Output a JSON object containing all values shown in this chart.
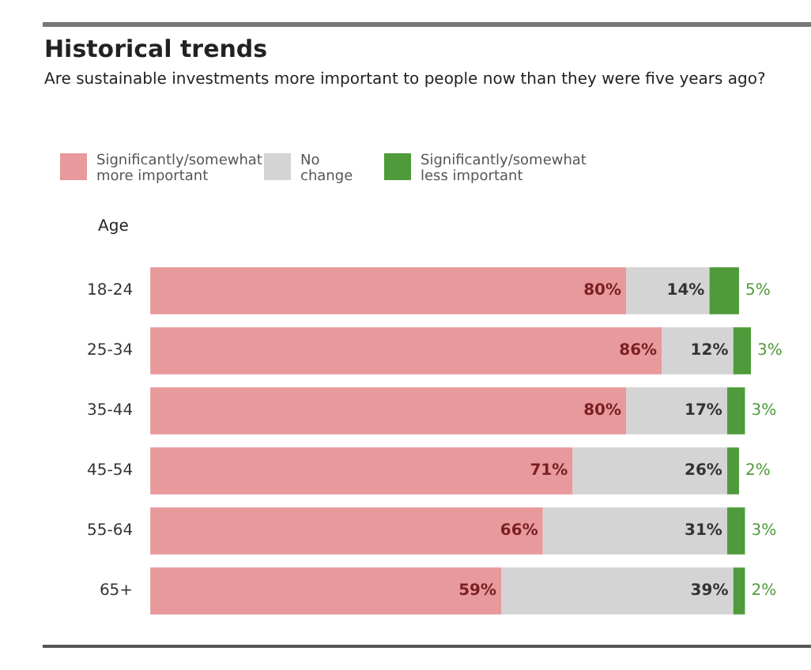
{
  "chart_data": {
    "type": "bar",
    "orientation": "horizontal",
    "stacked": true,
    "title": "Historical trends",
    "subtitle": "Are sustainable investments more important to people now than they were five years ago?",
    "ylabel": "Age",
    "categories": [
      "18-24",
      "25-34",
      "35-44",
      "45-54",
      "55-64",
      "65+"
    ],
    "series": [
      {
        "name": "Significantly/somewhat more important",
        "color": "#e8999c",
        "values": [
          80,
          86,
          80,
          71,
          66,
          59
        ],
        "value_labels": [
          "80%",
          "86%",
          "80%",
          "71%",
          "66%",
          "59%"
        ]
      },
      {
        "name": "No change",
        "color": "#d4d4d4",
        "values": [
          14,
          12,
          17,
          26,
          31,
          39
        ],
        "value_labels": [
          "14%",
          "12%",
          "17%",
          "26%",
          "31%",
          "39%"
        ]
      },
      {
        "name": "Significantly/somewhat less important",
        "color": "#4f9a3b",
        "values": [
          5,
          3,
          3,
          2,
          3,
          2
        ],
        "value_labels": [
          "5%",
          "3%",
          "3%",
          "2%",
          "3%",
          "2%"
        ]
      }
    ],
    "xlim": [
      0,
      101
    ],
    "tick_labels": "y",
    "legend": "top left"
  }
}
